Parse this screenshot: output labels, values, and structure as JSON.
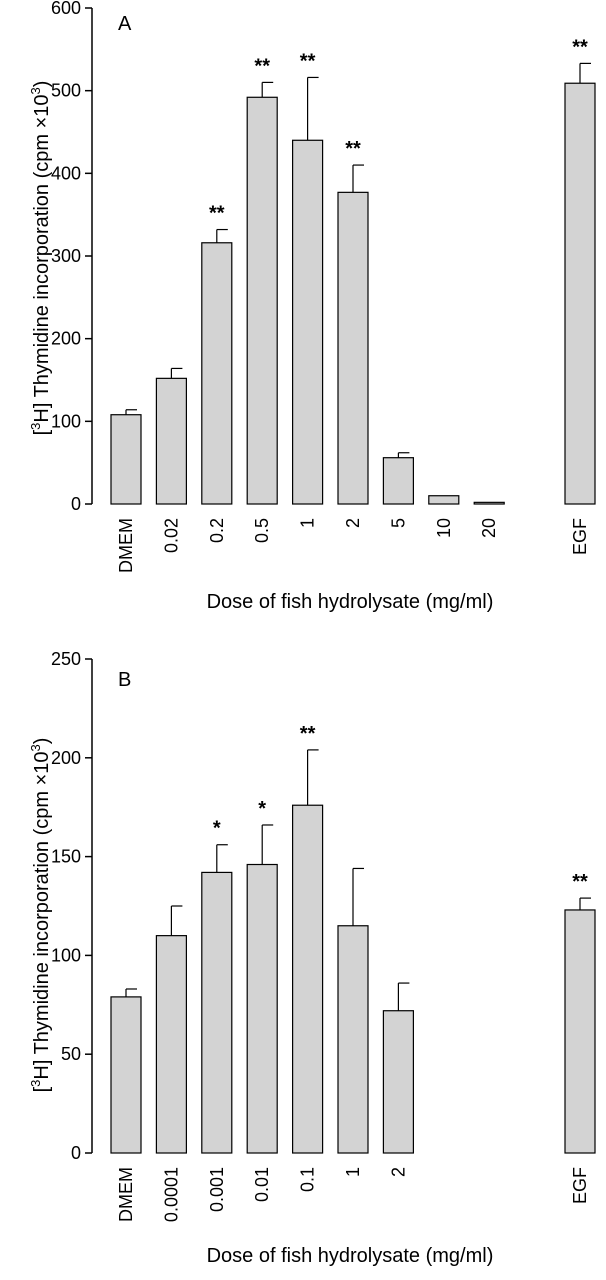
{
  "chart_data": [
    {
      "type": "bar",
      "panel": "A",
      "categories": [
        "DMEM",
        "0.02",
        "0.2",
        "0.5",
        "1",
        "2",
        "5",
        "10",
        "20",
        "",
        "EGF"
      ],
      "values": [
        108,
        152,
        316,
        492,
        440,
        377,
        56,
        10,
        2,
        null,
        509
      ],
      "errors": [
        6,
        12,
        16,
        18,
        76,
        33,
        6,
        0,
        0,
        null,
        24
      ],
      "significance": [
        "",
        "",
        "**",
        "**",
        "**",
        "**",
        "",
        "",
        "",
        "",
        "**"
      ],
      "ylim": [
        0,
        600
      ],
      "yticks": [
        0,
        100,
        200,
        300,
        400,
        500,
        600
      ],
      "ylabel_parts": [
        "[",
        "3",
        "H] Thymidine incorporation (cpm ×10",
        "3",
        ")"
      ],
      "xlabel": "Dose of fish hydrolysate (mg/ml)",
      "bar_color": "#d3d3d3"
    },
    {
      "type": "bar",
      "panel": "B",
      "categories": [
        "DMEM",
        "0.0001",
        "0.001",
        "0.01",
        "0.1",
        "1",
        "2",
        "",
        "",
        "",
        "EGF"
      ],
      "values": [
        79,
        110,
        142,
        146,
        176,
        115,
        72,
        null,
        null,
        null,
        123
      ],
      "errors": [
        4,
        15,
        14,
        20,
        28,
        29,
        14,
        null,
        null,
        null,
        6
      ],
      "significance": [
        "",
        "",
        "*",
        "*",
        "**",
        "",
        "",
        "",
        "",
        "",
        "**"
      ],
      "ylim": [
        0,
        250
      ],
      "yticks": [
        0,
        50,
        100,
        150,
        200,
        250
      ],
      "ylabel_parts": [
        "[",
        "3",
        "H] Thymidine incorporation (cpm ×10",
        "3",
        ")"
      ],
      "xlabel": "Dose of fish hydrolysate (mg/ml)",
      "bar_color": "#d3d3d3"
    }
  ]
}
